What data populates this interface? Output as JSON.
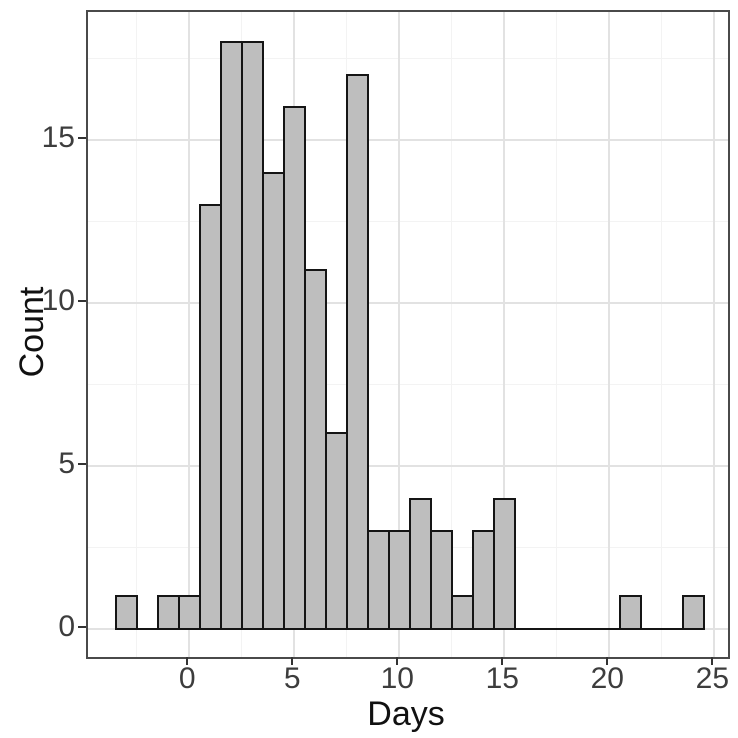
{
  "chart_data": {
    "type": "bar",
    "subtype": "histogram",
    "title": "",
    "xlabel": "Days",
    "ylabel": "Count",
    "bin_width": 1,
    "categories": [
      -3,
      -2,
      -1,
      0,
      1,
      2,
      3,
      4,
      5,
      6,
      7,
      8,
      9,
      10,
      11,
      12,
      13,
      14,
      15,
      16,
      17,
      18,
      19,
      20,
      21,
      22,
      23,
      24
    ],
    "values": [
      1,
      0,
      1,
      1,
      13,
      18,
      18,
      14,
      16,
      11,
      6,
      17,
      3,
      3,
      4,
      3,
      1,
      3,
      4,
      0,
      0,
      0,
      0,
      0,
      1,
      0,
      0,
      1
    ],
    "xlim": [
      -4.82,
      25.65
    ],
    "ylim": [
      -0.86,
      18.93
    ],
    "x_ticks": [
      0,
      5,
      10,
      15,
      20,
      25
    ],
    "y_ticks": [
      0,
      5,
      10,
      15
    ],
    "x_minor_ticks": [
      -2.5,
      2.5,
      7.5,
      12.5,
      17.5,
      22.5
    ],
    "y_minor_ticks": [
      2.5,
      7.5,
      12.5,
      17.5
    ],
    "data_x_range": [
      -3.5,
      24.5
    ],
    "grid": true,
    "legend": "none",
    "colors": {
      "bar_fill": "#bebebe",
      "bar_stroke": "#151515",
      "panel_border": "#4a4a4a",
      "grid_major": "#e2e2e2",
      "grid_minor": "#f3f3f3",
      "tick_mark": "#333333",
      "tick_text": "#3d3d3d",
      "title_text": "#111111",
      "background": "#ffffff"
    }
  }
}
